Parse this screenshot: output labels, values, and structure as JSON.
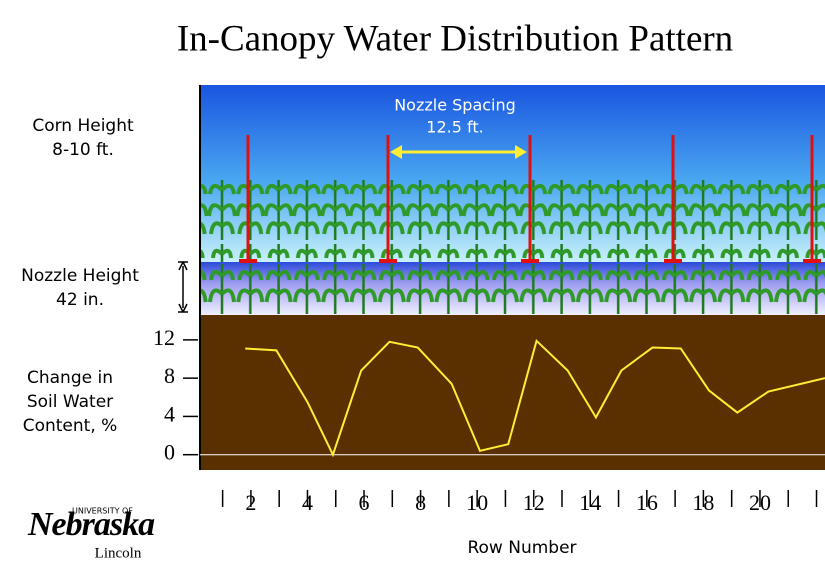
{
  "chart_data": {
    "type": "line",
    "title": "In-Canopy Water Distribution Pattern",
    "corn_height_label": [
      "Corn Height",
      "8-10 ft."
    ],
    "nozzle_height_label": [
      "Nozzle Height",
      "42 in."
    ],
    "nozzle_spacing_label": [
      "Nozzle Spacing",
      "12.5 ft."
    ],
    "ylabel": [
      "Change in",
      "Soil Water",
      "Content, %"
    ],
    "xlabel": "Row Number",
    "logo": {
      "top": "UNIVERSITY OF",
      "name": "Nebraska",
      "campus": "Lincoln"
    },
    "x": [
      1.8,
      2.9,
      4.0,
      4.9,
      5.9,
      6.9,
      7.9,
      9.1,
      10.1,
      11.1,
      12.1,
      13.2,
      14.2,
      15.1,
      16.2,
      17.2,
      18.2,
      19.2,
      20.3,
      22.3
    ],
    "values": [
      11.1,
      10.9,
      5.5,
      0,
      8.8,
      11.8,
      11.2,
      7.4,
      0.4,
      1.1,
      11.9,
      8.8,
      3.9,
      8.8,
      11.2,
      11.1,
      6.7,
      4.4,
      6.6,
      8.0
    ],
    "color": "#ffee33",
    "xlim": [
      0.2,
      22.3
    ],
    "xticks": [
      2,
      4,
      6,
      8,
      10,
      12,
      14,
      16,
      18,
      20
    ],
    "xminor_ticks": [
      1,
      3,
      5,
      7,
      9,
      11,
      13,
      15,
      17,
      19,
      21,
      22
    ],
    "ylim": [
      -1.6,
      14.6
    ],
    "yticks": [
      0,
      4,
      8,
      12
    ]
  }
}
